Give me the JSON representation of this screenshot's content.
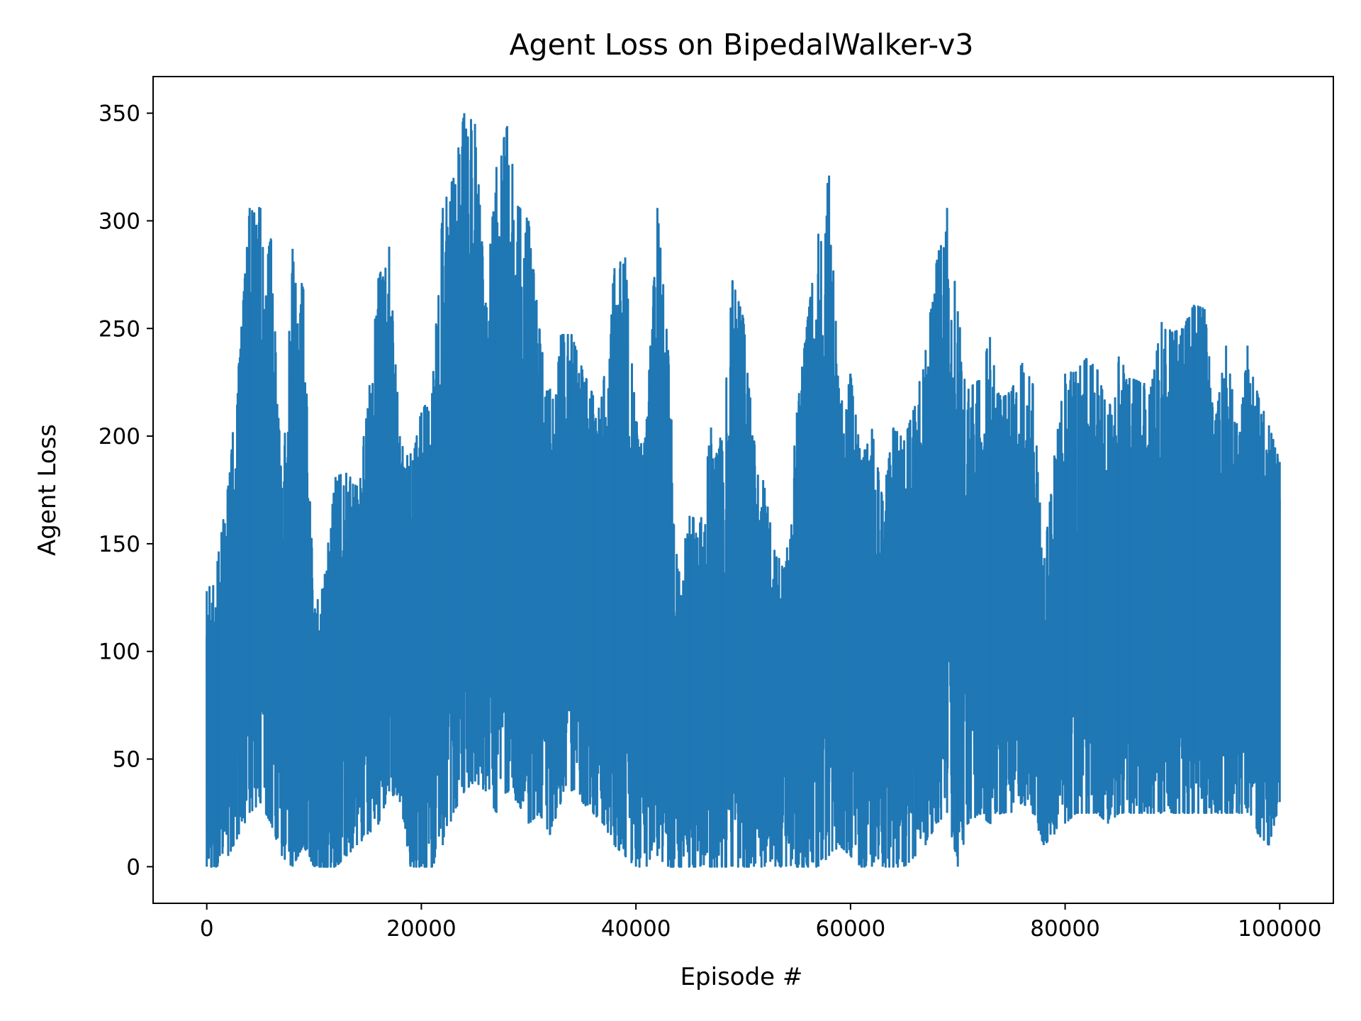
{
  "chart_data": {
    "type": "line",
    "title": "Agent Loss on BipedalWalker-v3",
    "xlabel": "Episode #",
    "ylabel": "Agent Loss",
    "xlim": [
      -5000,
      105000
    ],
    "ylim": [
      -17,
      367
    ],
    "x_ticks": [
      0,
      20000,
      40000,
      60000,
      80000,
      100000
    ],
    "x_tick_labels": [
      "0",
      "20000",
      "40000",
      "60000",
      "80000",
      "100000"
    ],
    "y_ticks": [
      0,
      50,
      100,
      150,
      200,
      250,
      300,
      350
    ],
    "y_tick_labels": [
      "0",
      "50",
      "100",
      "150",
      "200",
      "250",
      "300",
      "350"
    ],
    "grid": false,
    "legend": "none",
    "colors": {
      "line": "#1f77b4",
      "axis": "#000000",
      "background": "#ffffff"
    },
    "series": [
      {
        "name": "Agent Loss",
        "x": [
          0,
          1000,
          2000,
          3000,
          4000,
          5000,
          6000,
          7000,
          8000,
          9000,
          10000,
          11000,
          12000,
          13000,
          14000,
          15000,
          16000,
          17000,
          18000,
          19000,
          20000,
          21000,
          22000,
          23000,
          24000,
          25000,
          26000,
          27000,
          28000,
          29000,
          30000,
          31000,
          32000,
          33000,
          34000,
          35000,
          36000,
          37000,
          38000,
          39000,
          40000,
          41000,
          42000,
          43000,
          44000,
          45000,
          46000,
          47000,
          48000,
          49000,
          50000,
          51000,
          52000,
          53000,
          54000,
          55000,
          56000,
          57000,
          58000,
          59000,
          60000,
          61000,
          62000,
          63000,
          64000,
          65000,
          66000,
          67000,
          68000,
          69000,
          70000,
          71000,
          72000,
          73000,
          74000,
          75000,
          76000,
          77000,
          78000,
          79000,
          80000,
          81000,
          82000,
          83000,
          84000,
          85000,
          86000,
          87000,
          88000,
          89000,
          90000,
          91000,
          92000,
          93000,
          94000,
          95000,
          96000,
          97000,
          98000,
          99000,
          100000
        ],
        "low": [
          0,
          0,
          5,
          15,
          25,
          30,
          20,
          5,
          0,
          10,
          0,
          0,
          0,
          5,
          10,
          15,
          20,
          35,
          30,
          0,
          0,
          0,
          10,
          25,
          35,
          40,
          35,
          25,
          35,
          30,
          20,
          25,
          15,
          30,
          35,
          30,
          25,
          20,
          10,
          5,
          0,
          0,
          5,
          0,
          0,
          0,
          0,
          0,
          0,
          0,
          0,
          0,
          0,
          0,
          0,
          0,
          0,
          0,
          5,
          10,
          5,
          0,
          0,
          0,
          0,
          0,
          5,
          10,
          20,
          25,
          0,
          20,
          25,
          20,
          25,
          25,
          30,
          25,
          10,
          15,
          20,
          25,
          25,
          25,
          20,
          25,
          25,
          25,
          25,
          25,
          25,
          25,
          25,
          25,
          25,
          25,
          25,
          25,
          15,
          10,
          30
        ],
        "high": [
          128,
          142,
          177,
          234,
          306,
          306,
          291,
          176,
          287,
          268,
          118,
          136,
          181,
          183,
          177,
          213,
          273,
          288,
          200,
          192,
          211,
          220,
          306,
          320,
          350,
          345,
          262,
          325,
          344,
          307,
          300,
          250,
          222,
          247,
          247,
          231,
          219,
          226,
          278,
          283,
          207,
          208,
          306,
          240,
          136,
          163,
          160,
          204,
          198,
          272,
          255,
          198,
          176,
          144,
          142,
          211,
          254,
          294,
          321,
          213,
          229,
          189,
          203,
          170,
          204,
          198,
          214,
          240,
          280,
          306,
          258,
          222,
          226,
          246,
          217,
          221,
          234,
          224,
          140,
          191,
          229,
          230,
          236,
          231,
          210,
          237,
          227,
          225,
          223,
          253,
          248,
          250,
          261,
          259,
          207,
          242,
          206,
          242,
          218,
          205,
          188
        ]
      }
    ]
  }
}
